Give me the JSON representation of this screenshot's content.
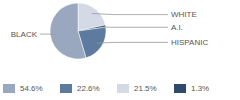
{
  "chart_data": {
    "type": "pie",
    "categories": [
      "BLACK",
      "HISPANIC",
      "WHITE",
      "A.I."
    ],
    "values": [
      54.6,
      22.6,
      21.5,
      1.3
    ],
    "value_labels": [
      "54.6%",
      "22.6%",
      "21.5%",
      "1.3%"
    ],
    "colors": [
      "#9aa8bf",
      "#5d7a9f",
      "#d3dae6",
      "#2d4a6f"
    ],
    "legend": "bottom"
  }
}
